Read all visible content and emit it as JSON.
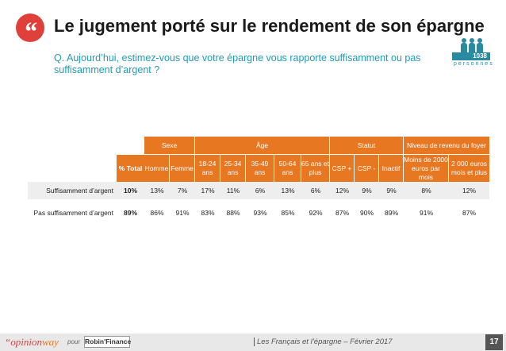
{
  "header": {
    "quote_glyph": "“",
    "title": "Le jugement porté sur le rendement de son épargne",
    "question": "Q. Aujourd’hui, estimez-vous que votre épargne vous rapporte suffisamment ou pas suffisamment d’argent ?"
  },
  "sample": {
    "count": "1038",
    "unit": "personnes"
  },
  "table": {
    "groups": [
      "Sexe",
      "Âge",
      "Statut",
      "Niveau de revenu du foyer"
    ],
    "columns": [
      "% Total",
      "Homme",
      "Femme",
      "18-24 ans",
      "25-34 ans",
      "35-49 ans",
      "50-64 ans",
      "65 ans et plus",
      "CSP +",
      "CSP -",
      "Inactif",
      "Moins de 2000 euros par mois",
      "2 000 euros mois et plus"
    ],
    "rows": [
      {
        "label": "Suffisamment d’argent",
        "values": [
          "10%",
          "13%",
          "7%",
          "17%",
          "11%",
          "6%",
          "13%",
          "6%",
          "12%",
          "9%",
          "9%",
          "8%",
          "12%"
        ]
      },
      {
        "label": "Pas suffisamment d’argent",
        "values": [
          "89%",
          "86%",
          "91%",
          "83%",
          "88%",
          "93%",
          "85%",
          "92%",
          "87%",
          "90%",
          "89%",
          "91%",
          "87%"
        ]
      }
    ]
  },
  "footer": {
    "brand_a": "“opinion",
    "brand_b": "way",
    "pour": "pour",
    "partner": "Robin'Finance",
    "study": "Les Français et l’épargne – Février 2017",
    "page": "17"
  },
  "colors": {
    "accent": "#e87722",
    "title_badge": "#e0403a",
    "question": "#1f9bb6"
  }
}
